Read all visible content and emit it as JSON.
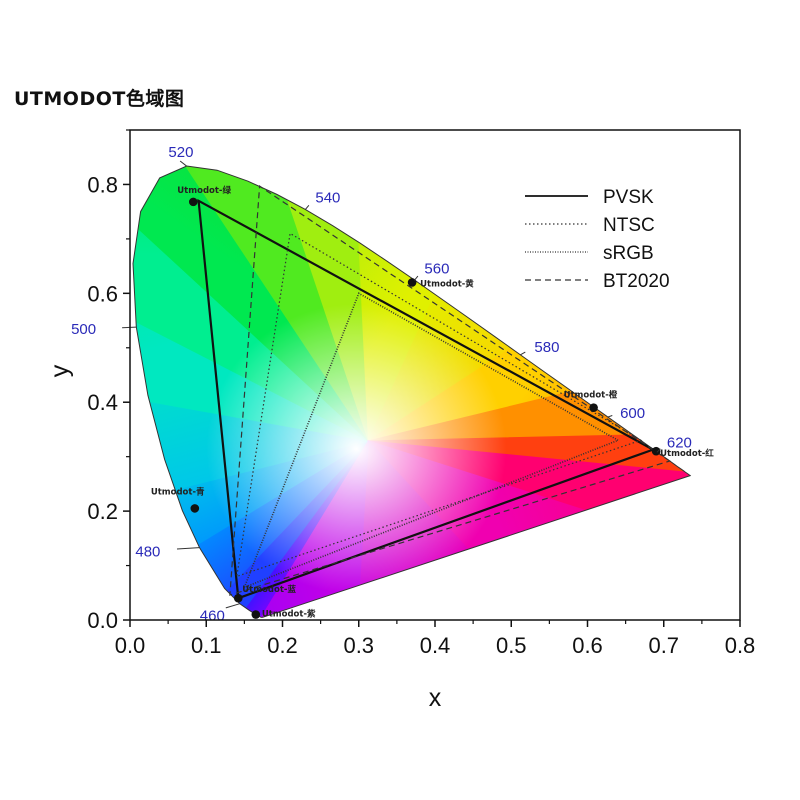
{
  "chart_data": {
    "type": "scatter",
    "title": "UTMODOT色域图",
    "xlabel": "x",
    "ylabel": "y",
    "xlim": [
      0.0,
      0.8
    ],
    "ylim": [
      0.0,
      0.9
    ],
    "x_ticks": [
      "0.0",
      "0.1",
      "0.2",
      "0.3",
      "0.4",
      "0.5",
      "0.6",
      "0.7",
      "0.8"
    ],
    "y_ticks": [
      "0.0",
      "0.2",
      "0.4",
      "0.6",
      "0.8"
    ],
    "legend_position": "top-right",
    "spectral_locus_labels": [
      {
        "nm": "460",
        "x": 0.144,
        "y": 0.03
      },
      {
        "nm": "480",
        "x": 0.091,
        "y": 0.133
      },
      {
        "nm": "500",
        "x": 0.008,
        "y": 0.538
      },
      {
        "nm": "520",
        "x": 0.074,
        "y": 0.834
      },
      {
        "nm": "540",
        "x": 0.23,
        "y": 0.754
      },
      {
        "nm": "560",
        "x": 0.373,
        "y": 0.624
      },
      {
        "nm": "580",
        "x": 0.512,
        "y": 0.487
      },
      {
        "nm": "600",
        "x": 0.627,
        "y": 0.373
      },
      {
        "nm": "620",
        "x": 0.691,
        "y": 0.308
      }
    ],
    "series": [
      {
        "name": "PVSK",
        "points": [
          [
            0.686,
            0.313
          ],
          [
            0.09,
            0.77
          ],
          [
            0.142,
            0.04
          ]
        ]
      },
      {
        "name": "NTSC",
        "points": [
          [
            0.67,
            0.33
          ],
          [
            0.21,
            0.71
          ],
          [
            0.14,
            0.08
          ]
        ]
      },
      {
        "name": "sRGB",
        "points": [
          [
            0.64,
            0.33
          ],
          [
            0.3,
            0.6
          ],
          [
            0.15,
            0.06
          ]
        ]
      },
      {
        "name": "BT2020",
        "points": [
          [
            0.708,
            0.292
          ],
          [
            0.17,
            0.797
          ],
          [
            0.131,
            0.046
          ]
        ]
      }
    ],
    "utmodot_points": [
      {
        "label": "Utmodot-绿",
        "x": 0.083,
        "y": 0.768
      },
      {
        "label": "Utmodot-黄",
        "x": 0.37,
        "y": 0.62
      },
      {
        "label": "Utmodot-橙",
        "x": 0.608,
        "y": 0.39
      },
      {
        "label": "Utmodot-红",
        "x": 0.69,
        "y": 0.31
      },
      {
        "label": "Utmodot-青",
        "x": 0.085,
        "y": 0.205
      },
      {
        "label": "Utmodot-紫",
        "x": 0.165,
        "y": 0.01
      },
      {
        "label": "Utmodot-蓝",
        "x": 0.142,
        "y": 0.04
      }
    ]
  }
}
